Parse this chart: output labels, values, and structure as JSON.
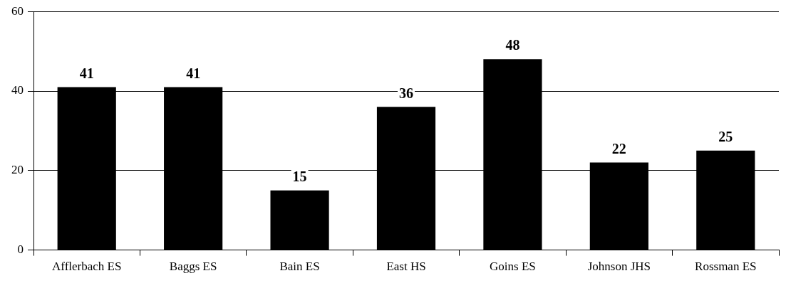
{
  "chart_data": {
    "type": "bar",
    "categories": [
      "Afflerbach ES",
      "Baggs ES",
      "Bain ES",
      "East HS",
      "Goins ES",
      "Johnson JHS",
      "Rossman ES"
    ],
    "values": [
      41,
      41,
      15,
      36,
      48,
      22,
      25
    ],
    "color": "#000000",
    "ylim": [
      0,
      60
    ],
    "yticks": [
      0,
      20,
      40,
      60
    ],
    "grid": "y",
    "data_labels": true,
    "legend": false
  }
}
